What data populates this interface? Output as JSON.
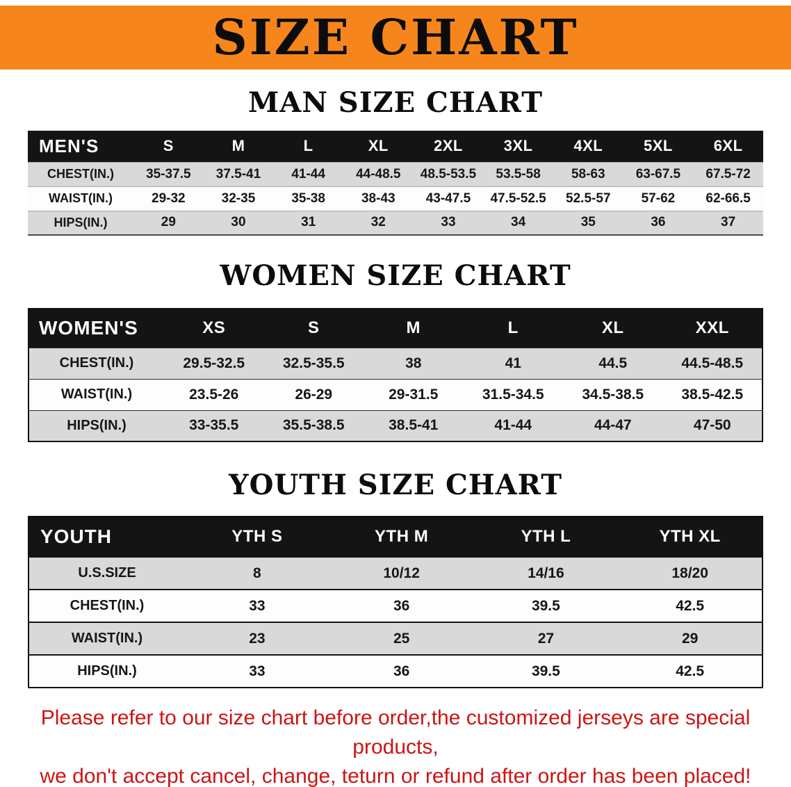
{
  "banner": {
    "title": "SIZE CHART"
  },
  "men": {
    "heading": "MAN SIZE CHART",
    "header": [
      "MEN'S",
      "S",
      "M",
      "L",
      "XL",
      "2XL",
      "3XL",
      "4XL",
      "5XL",
      "6XL"
    ],
    "rows": [
      [
        "CHEST(IN.)",
        "35-37.5",
        "37.5-41",
        "41-44",
        "44-48.5",
        "48.5-53.5",
        "53.5-58",
        "58-63",
        "63-67.5",
        "67.5-72"
      ],
      [
        "WAIST(IN.)",
        "29-32",
        "32-35",
        "35-38",
        "38-43",
        "43-47.5",
        "47.5-52.5",
        "52.5-57",
        "57-62",
        "62-66.5"
      ],
      [
        "HIPS(IN.)",
        "29",
        "30",
        "31",
        "32",
        "33",
        "34",
        "35",
        "36",
        "37"
      ]
    ]
  },
  "women": {
    "heading": "WOMEN SIZE CHART",
    "header": [
      "WOMEN'S",
      "XS",
      "S",
      "M",
      "L",
      "XL",
      "XXL"
    ],
    "rows": [
      [
        "CHEST(IN.)",
        "29.5-32.5",
        "32.5-35.5",
        "38",
        "41",
        "44.5",
        "44.5-48.5"
      ],
      [
        "WAIST(IN.)",
        "23.5-26",
        "26-29",
        "29-31.5",
        "31.5-34.5",
        "34.5-38.5",
        "38.5-42.5"
      ],
      [
        "HIPS(IN.)",
        "33-35.5",
        "35.5-38.5",
        "38.5-41",
        "41-44",
        "44-47",
        "47-50"
      ]
    ]
  },
  "youth": {
    "heading": "YOUTH SIZE CHART",
    "header": [
      "YOUTH",
      "YTH S",
      "YTH M",
      "YTH L",
      "YTH XL"
    ],
    "rows": [
      [
        "U.S.SIZE",
        "8",
        "10/12",
        "14/16",
        "18/20"
      ],
      [
        "CHEST(IN.)",
        "33",
        "36",
        "39.5",
        "42.5"
      ],
      [
        "WAIST(IN.)",
        "23",
        "25",
        "27",
        "29"
      ],
      [
        "HIPS(IN.)",
        "33",
        "36",
        "39.5",
        "42.5"
      ]
    ]
  },
  "footer": {
    "line1": "Please refer to our size chart before order,the customized jerseys are special products,",
    "line2": "we don't accept cancel, change, teturn or refund after order has been placed!"
  },
  "colors": {
    "banner_bg": "#f6861c",
    "header_bg": "#141414",
    "stripe": "#d9d9d9",
    "footer_text": "#cc1414"
  }
}
